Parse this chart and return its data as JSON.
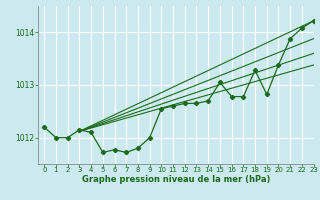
{
  "background_color": "#cce9f0",
  "grid_color": "#ffffff",
  "line_color": "#1a6b1a",
  "xlabel": "Graphe pression niveau de la mer (hPa)",
  "xlim": [
    -0.5,
    23
  ],
  "ylim": [
    1011.5,
    1014.5
  ],
  "yticks": [
    1012,
    1013,
    1014
  ],
  "xticks": [
    0,
    1,
    2,
    3,
    4,
    5,
    6,
    7,
    8,
    9,
    10,
    11,
    12,
    13,
    14,
    15,
    16,
    17,
    18,
    19,
    20,
    21,
    22,
    23
  ],
  "hours": [
    0,
    1,
    2,
    3,
    4,
    5,
    6,
    7,
    8,
    9,
    10,
    11,
    12,
    13,
    14,
    15,
    16,
    17,
    18,
    19,
    20,
    21,
    22,
    23
  ],
  "line_main": [
    1012.2,
    1012.0,
    1012.0,
    1012.15,
    1012.1,
    1011.72,
    1011.77,
    1011.72,
    1011.8,
    1012.0,
    1012.55,
    1012.6,
    1012.65,
    1012.65,
    1012.7,
    1013.05,
    1012.78,
    1012.78,
    1013.28,
    1012.82,
    1013.38,
    1013.88,
    1014.08,
    1014.22
  ],
  "line_smooth1_pts": [
    [
      3,
      1012.12
    ],
    [
      23,
      1014.22
    ]
  ],
  "line_smooth2_pts": [
    [
      3,
      1012.12
    ],
    [
      23,
      1013.88
    ]
  ],
  "line_smooth3_pts": [
    [
      3,
      1012.12
    ],
    [
      23,
      1013.6
    ]
  ],
  "line_smooth4_pts": [
    [
      3,
      1012.12
    ],
    [
      23,
      1013.38
    ]
  ]
}
